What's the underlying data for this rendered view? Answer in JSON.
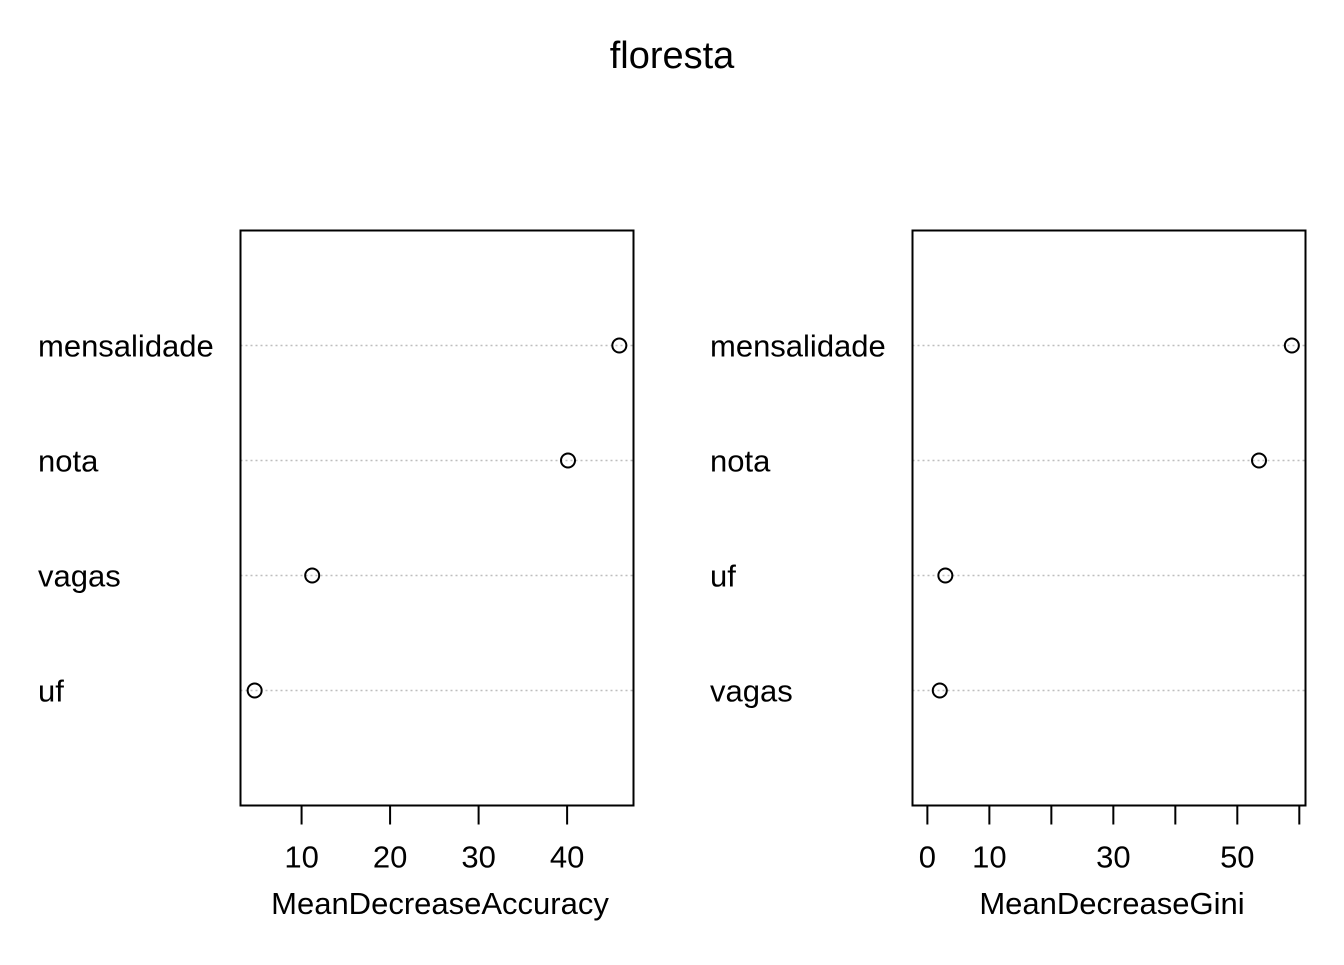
{
  "title": "floresta",
  "chart_data": [
    {
      "type": "dotchart",
      "categories": [
        "mensalidade",
        "nota",
        "vagas",
        "uf"
      ],
      "values": [
        45.9,
        40.1,
        11.2,
        4.7
      ],
      "xlabel": "MeanDecreaseAccuracy",
      "xlim": [
        3.1,
        47.5
      ],
      "xticks": [
        10,
        20,
        30,
        40
      ],
      "xtick_labels": [
        "10",
        "20",
        "30",
        "40"
      ],
      "grid": "dotted horizontal lines",
      "marker": "open circle"
    },
    {
      "type": "dotchart",
      "categories": [
        "mensalidade",
        "nota",
        "uf",
        "vagas"
      ],
      "values": [
        58.8,
        53.5,
        2.9,
        2.0
      ],
      "xlabel": "MeanDecreaseGini",
      "xlim": [
        -2.4,
        61.0
      ],
      "xticks": [
        0,
        10,
        20,
        30,
        40,
        50,
        60
      ],
      "xtick_labels": [
        "0",
        "10",
        "",
        "30",
        "",
        "50",
        ""
      ],
      "grid": "dotted horizontal lines",
      "marker": "open circle"
    }
  ]
}
